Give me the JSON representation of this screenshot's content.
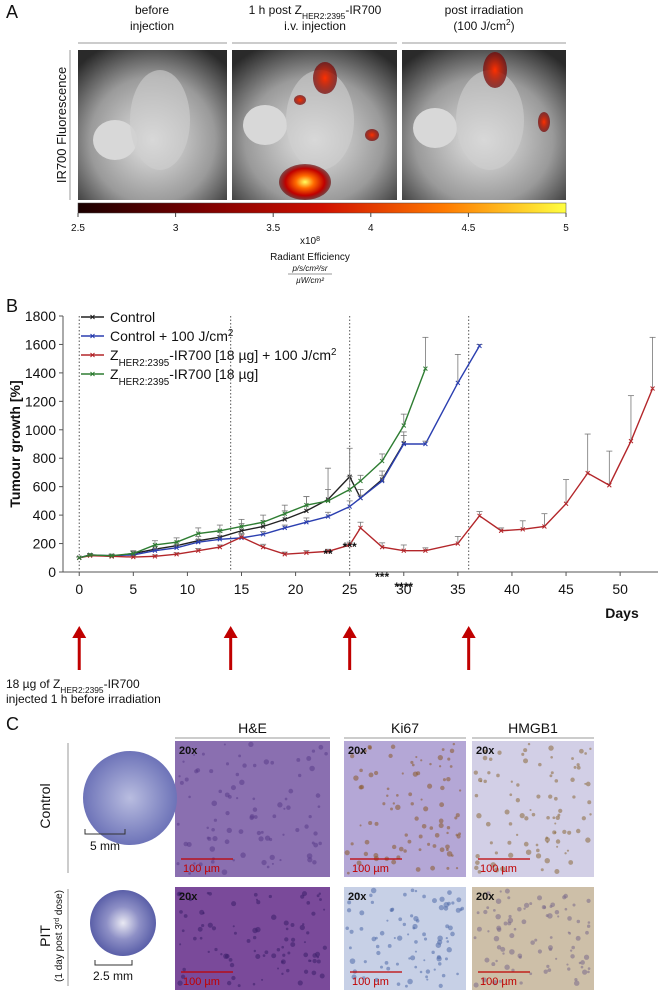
{
  "panel_a": {
    "letter": "A",
    "columns": [
      {
        "lines": [
          "before",
          "injection"
        ]
      },
      {
        "lines": [
          [
            {
              "t": "1 h post Z"
            },
            {
              "t": "HER2:2395",
              "s": "sub"
            },
            {
              "t": "-IR700"
            }
          ],
          "i.v. injection"
        ]
      },
      {
        "lines": [
          "post irradiation",
          [
            {
              "t": "(100 J/cm"
            },
            {
              "t": "2",
              "s": "sup"
            },
            {
              "t": ")"
            }
          ]
        ]
      }
    ],
    "row_label": "IR700 Fluorescence",
    "colorbar": {
      "lim": [
        2.5,
        5
      ],
      "ticks": [
        2.5,
        3,
        3.5,
        4,
        4.5,
        5
      ],
      "multiplier": [
        {
          "t": "x10"
        },
        {
          "t": "8",
          "s": "sup"
        }
      ],
      "label": "Radiant Efficiency",
      "unit_numerator": "p/s/cm²/sr",
      "unit_denominator": "µW/cm²"
    }
  },
  "chart_data": {
    "type": "line",
    "letter": "B",
    "ylabel": "Tumour growth [%]",
    "xlabel": "Days",
    "xlim": [
      -1.5,
      53.5
    ],
    "xticks": [
      0,
      5,
      10,
      15,
      20,
      25,
      30,
      35,
      40,
      45,
      50
    ],
    "ylim": [
      0,
      1800
    ],
    "yticks": [
      0,
      200,
      400,
      600,
      800,
      1000,
      1200,
      1400,
      1600,
      1800
    ],
    "irradiation_days": [
      0,
      14,
      25,
      36
    ],
    "note": [
      [
        {
          "t": "18 µg of Z"
        },
        {
          "t": "HER2:2395",
          "s": "sub"
        },
        {
          "t": "-IR700"
        }
      ],
      "injected 1 h before irradiation"
    ],
    "series": [
      {
        "name": "Control",
        "color": "#222222",
        "x": [
          0,
          1,
          3,
          5,
          7,
          9,
          11,
          13,
          15,
          17,
          19,
          21,
          23,
          25,
          26,
          28,
          30
        ],
        "values": [
          100,
          120,
          110,
          130,
          160,
          185,
          220,
          245,
          290,
          320,
          370,
          430,
          510,
          670,
          520,
          650,
          905
        ],
        "errors": [
          5,
          10,
          10,
          15,
          20,
          25,
          30,
          35,
          50,
          40,
          60,
          100,
          220,
          200,
          60,
          60,
          80
        ]
      },
      {
        "name": [
          {
            "t": "Control + 100 J/cm"
          },
          {
            "t": "2",
            "s": "sup"
          }
        ],
        "color": "#2b3fb0",
        "x": [
          0,
          1,
          3,
          5,
          7,
          9,
          11,
          13,
          15,
          17,
          19,
          21,
          23,
          25,
          26,
          28,
          30,
          32,
          35,
          37
        ],
        "values": [
          100,
          120,
          115,
          120,
          150,
          170,
          210,
          230,
          240,
          265,
          310,
          350,
          390,
          460,
          520,
          640,
          900,
          900,
          1330,
          1590
        ],
        "errors": [
          5,
          8,
          10,
          10,
          15,
          20,
          20,
          25,
          30,
          20,
          20,
          30,
          30,
          40,
          20,
          40,
          60,
          20,
          200,
          10
        ]
      },
      {
        "name": [
          {
            "t": "Z"
          },
          {
            "t": "HER2:2395",
            "s": "sub"
          },
          {
            "t": "-IR700 [18 µg] + 100 J/cm"
          },
          {
            "t": "2",
            "s": "sup"
          }
        ],
        "color": "#b3262a",
        "x": [
          0,
          1,
          3,
          5,
          7,
          9,
          11,
          13,
          15,
          17,
          19,
          21,
          23,
          25,
          26,
          28,
          30,
          32,
          35,
          37,
          39,
          41,
          43,
          45,
          47,
          49,
          51,
          53
        ],
        "values": [
          100,
          115,
          110,
          105,
          110,
          125,
          150,
          175,
          245,
          175,
          125,
          135,
          145,
          190,
          310,
          175,
          150,
          150,
          200,
          395,
          290,
          300,
          320,
          480,
          695,
          610,
          920,
          1290
        ],
        "errors": [
          5,
          8,
          8,
          8,
          10,
          10,
          15,
          15,
          20,
          20,
          15,
          15,
          15,
          20,
          40,
          30,
          40,
          20,
          50,
          30,
          20,
          60,
          90,
          170,
          275,
          240,
          320,
          360
        ]
      },
      {
        "name": [
          {
            "t": "Z"
          },
          {
            "t": "HER2:2395",
            "s": "sub"
          },
          {
            "t": "-IR700 [18 µg]"
          }
        ],
        "color": "#2e7d32",
        "x": [
          0,
          1,
          3,
          5,
          7,
          9,
          11,
          13,
          15,
          17,
          19,
          21,
          23,
          25,
          26,
          28,
          30,
          32
        ],
        "values": [
          100,
          120,
          115,
          130,
          190,
          210,
          270,
          290,
          320,
          350,
          410,
          470,
          500,
          580,
          640,
          780,
          1030,
          1430
        ],
        "errors": [
          5,
          10,
          10,
          20,
          30,
          30,
          40,
          40,
          50,
          50,
          60,
          60,
          80,
          90,
          40,
          50,
          80,
          220
        ]
      }
    ],
    "annotations": [
      {
        "x": 23,
        "text": "**"
      },
      {
        "x": 25,
        "text": "***"
      },
      {
        "x": 28,
        "text": "***"
      },
      {
        "x": 30,
        "text": "****"
      }
    ]
  },
  "panel_c": {
    "letter": "C",
    "columns": [
      "H&E",
      "Ki67",
      "HMGB1"
    ],
    "rows": [
      {
        "label": "Control",
        "scale": "5 mm"
      },
      {
        "label": "PIT",
        "sublabel": [
          {
            "t": "(1 day post 3"
          },
          {
            "t": "rd",
            "s": "sup"
          },
          {
            "t": " dose)"
          }
        ],
        "scale": "2.5 mm"
      }
    ],
    "magnification": "20x",
    "scale_bar": "100 µm"
  }
}
